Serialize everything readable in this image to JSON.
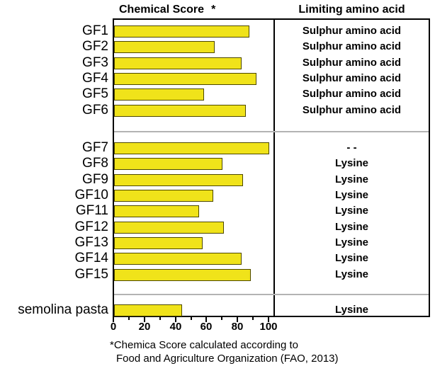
{
  "header": {
    "chemical_score": "Chemical Score",
    "asterisk": "*",
    "limiting": "Limiting amino acid"
  },
  "footnote": {
    "line1": "*Chemica Score calculated according to",
    "line2": "Food and Agriculture Organization (FAO, 2013)"
  },
  "chart_data": {
    "type": "bar",
    "orientation": "horizontal",
    "title": "Chemical Score *",
    "column2_title": "Limiting amino acid",
    "xlabel": "",
    "ylabel": "",
    "xlim": [
      0,
      100
    ],
    "x_ticks": [
      0,
      20,
      40,
      60,
      80,
      100
    ],
    "x_minor_ticks": [
      10,
      30,
      50,
      70,
      90
    ],
    "grid": false,
    "bar_color": "#F0E31A",
    "bar_border_color": "#4d4800",
    "separator_color": "#b3b3b3",
    "groups": [
      {
        "rows": [
          {
            "label": "GF1",
            "value": 87,
            "limiting": "Sulphur amino acid"
          },
          {
            "label": "GF2",
            "value": 65,
            "limiting": "Sulphur amino acid"
          },
          {
            "label": "GF3",
            "value": 82,
            "limiting": "Sulphur amino acid"
          },
          {
            "label": "GF4",
            "value": 92,
            "limiting": "Sulphur amino acid"
          },
          {
            "label": "GF5",
            "value": 58,
            "limiting": "Sulphur amino acid"
          },
          {
            "label": "GF6",
            "value": 85,
            "limiting": "Sulphur amino acid"
          }
        ]
      },
      {
        "rows": [
          {
            "label": "GF7",
            "value": 100,
            "limiting": "- -"
          },
          {
            "label": "GF8",
            "value": 70,
            "limiting": "Lysine"
          },
          {
            "label": "GF9",
            "value": 83,
            "limiting": "Lysine"
          },
          {
            "label": "GF10",
            "value": 64,
            "limiting": "Lysine"
          },
          {
            "label": "GF11",
            "value": 55,
            "limiting": "Lysine"
          },
          {
            "label": "GF12",
            "value": 71,
            "limiting": "Lysine"
          },
          {
            "label": "GF13",
            "value": 57,
            "limiting": "Lysine"
          },
          {
            "label": "GF14",
            "value": 82,
            "limiting": "Lysine"
          },
          {
            "label": "GF15",
            "value": 88,
            "limiting": "Lysine"
          }
        ]
      },
      {
        "rows": [
          {
            "label": "semolina pasta",
            "value": 44,
            "limiting": "Lysine"
          }
        ]
      }
    ]
  }
}
